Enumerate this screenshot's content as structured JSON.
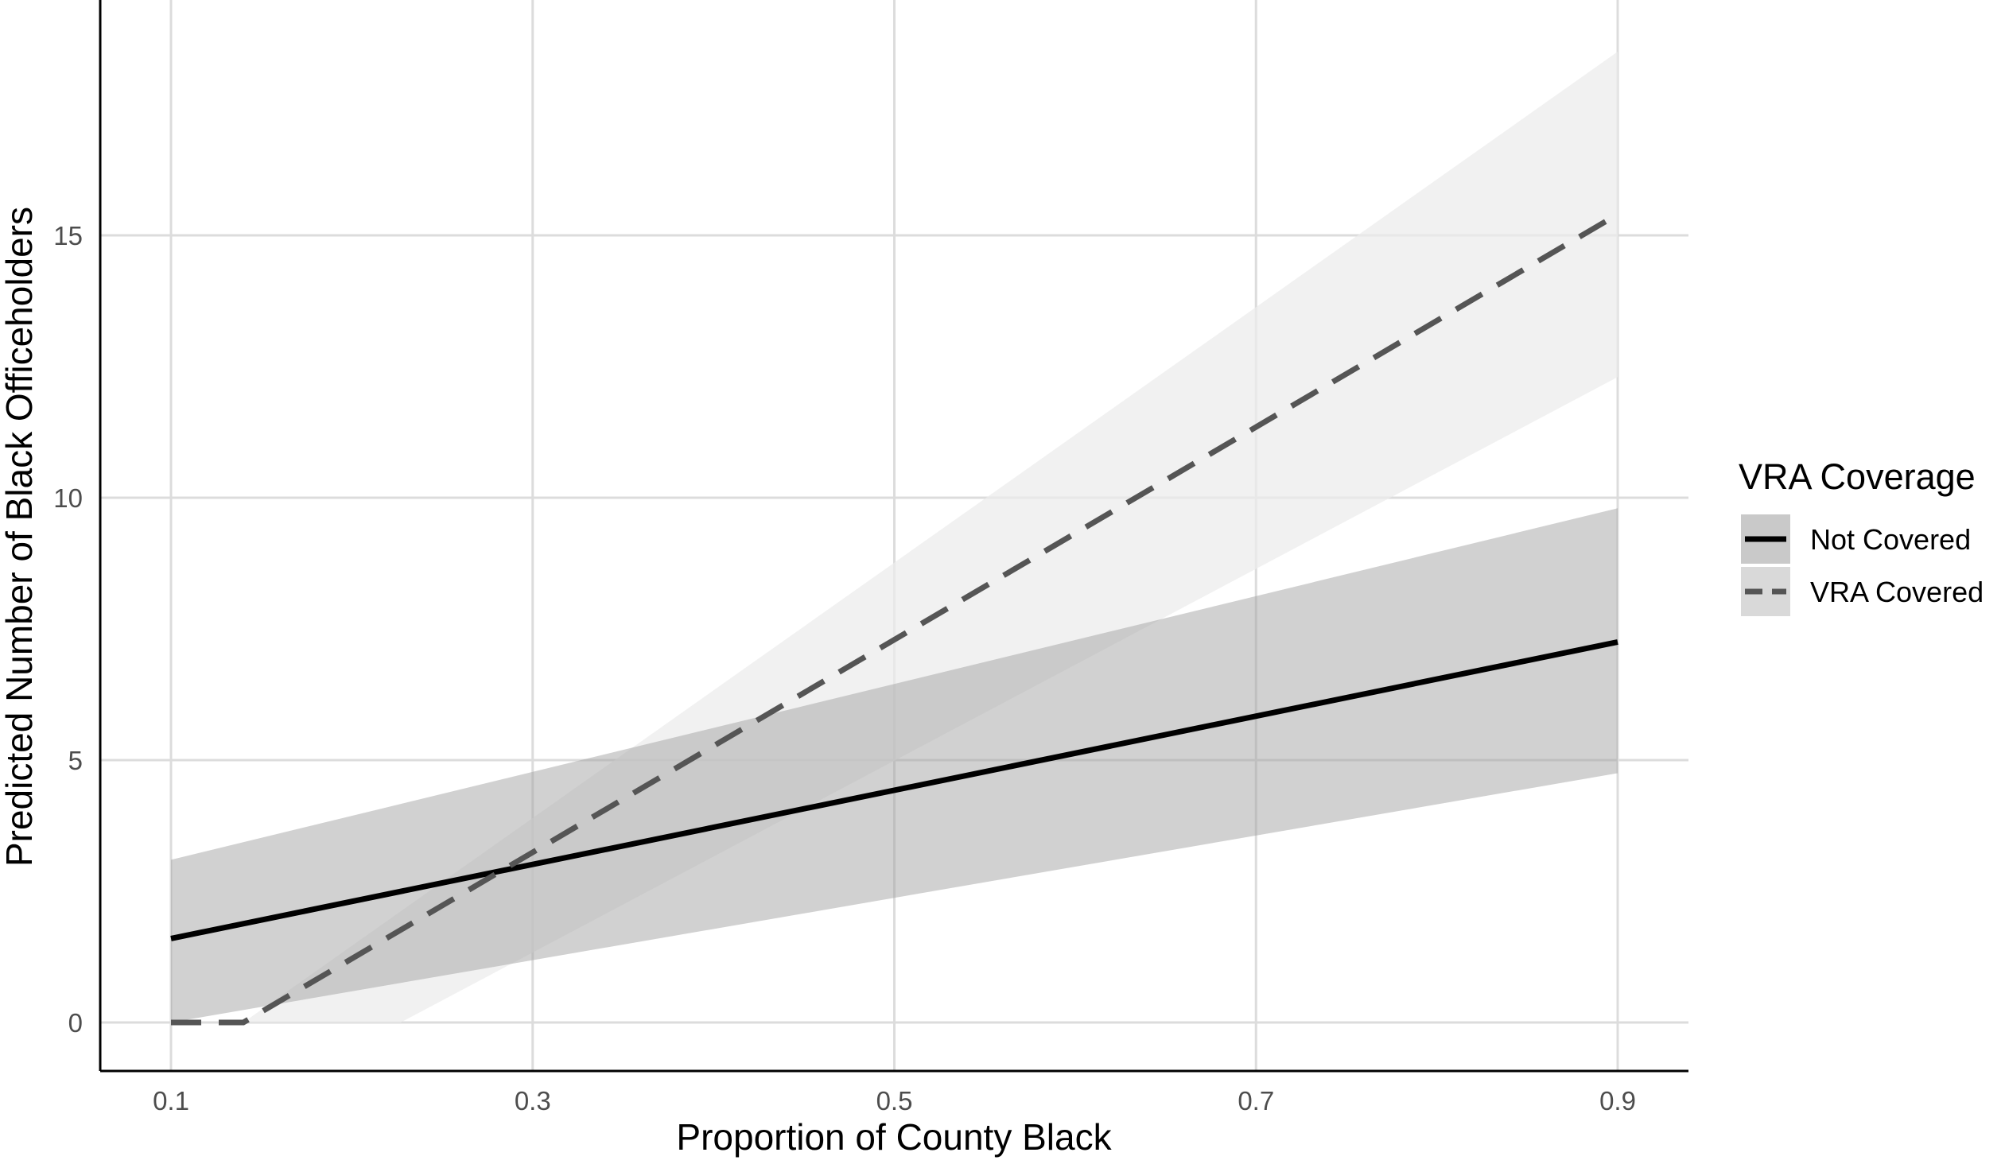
{
  "chart_data": {
    "type": "line",
    "title": "",
    "xlabel": "Proportion of County Black",
    "ylabel": "Predicted Number of Black Officeholders",
    "xlim": [
      0.06,
      0.94
    ],
    "ylim": [
      -0.9,
      19.5
    ],
    "x_ticks": [
      0.1,
      0.3,
      0.5,
      0.7,
      0.9
    ],
    "x_tick_labels": [
      "0.1",
      "0.3",
      "0.5",
      "0.7",
      "0.9"
    ],
    "y_ticks": [
      0,
      5,
      10,
      15
    ],
    "y_tick_labels": [
      "0",
      "5",
      "10",
      "15"
    ],
    "grid": true,
    "legend": {
      "title": "VRA Coverage",
      "position": "right"
    },
    "series": [
      {
        "name": "Not Covered",
        "line_style": "solid",
        "line_color": "#000000",
        "ribbon_color": "#bdbdbd",
        "x": [
          0.1,
          0.9
        ],
        "y": [
          1.6,
          7.25
        ],
        "lower": [
          0.0,
          4.75
        ],
        "upper": [
          3.1,
          9.8
        ]
      },
      {
        "name": "VRA Covered",
        "line_style": "dashed",
        "line_color": "#555555",
        "ribbon_color": "#ececec",
        "x": [
          0.1,
          0.14,
          0.9
        ],
        "y": [
          0.0,
          0.0,
          15.4
        ],
        "lower": [
          0.0,
          0.0,
          12.3
        ],
        "upper": [
          0.0,
          0.0,
          18.5
        ],
        "lower_zero_until": 0.227
      }
    ]
  }
}
